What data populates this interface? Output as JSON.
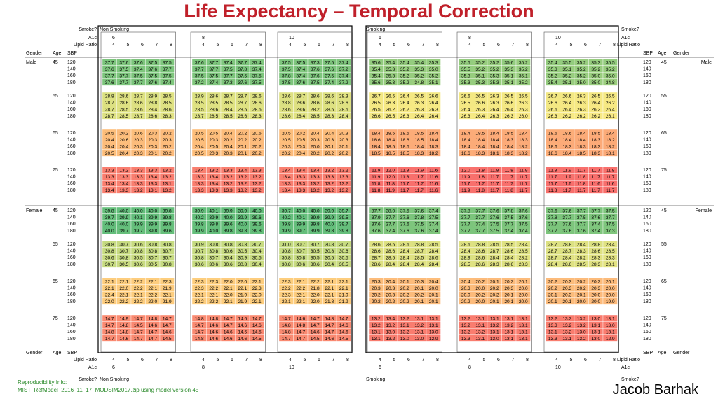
{
  "title": "Life Expectancy – Temporal Correction",
  "header_labels": {
    "smoke": "Smoke?",
    "a1c": "A1c",
    "lipid": "Lipid Ratio",
    "gender": "Gender",
    "age": "Age",
    "sbp": "SBP"
  },
  "smoke_groups": [
    "Non Smoking",
    "Smoking"
  ],
  "a1c_levels": [
    "6",
    "8",
    "10"
  ],
  "lipid_ratios": [
    "4",
    "5",
    "6",
    "7",
    "8"
  ],
  "genders": [
    "Male",
    "Female"
  ],
  "ages": [
    "45",
    "55",
    "65",
    "75"
  ],
  "sbp_levels": [
    "120",
    "140",
    "160",
    "180"
  ],
  "color_scale": {
    "low": "#f8696b",
    "mid": "#ffeb84",
    "high": "#63be7b",
    "min_value": 11,
    "max_value": 40
  },
  "footer": {
    "repro_label": "Reproducibility Info:",
    "repro_file": "MIST_RefModel_2016_11_17_MODSIM2017.zip using model version 45",
    "author": "Jacob Barhak"
  },
  "chart_data": {
    "type": "heatmap",
    "title": "Life Expectancy – Temporal Correction",
    "row_dims": [
      "Gender",
      "Age",
      "SBP"
    ],
    "col_dims": [
      "Smoke?",
      "A1c",
      "Lipid Ratio"
    ],
    "values": {
      "Male": {
        "45": [
          [
            37.7,
            37.6,
            37.6,
            37.5,
            37.5,
            37.6,
            37.7,
            37.4,
            37.7,
            37.4,
            37.5,
            37.5,
            37.3,
            37.5,
            37.4,
            35.6,
            35.4,
            35.4,
            35.4,
            35.3,
            35.5,
            35.2,
            35.2,
            35.6,
            35.2,
            35.4,
            35.5,
            35.2,
            35.3,
            35.5
          ],
          [
            37.6,
            37.5,
            37.4,
            37.6,
            37.7,
            37.7,
            37.7,
            37.5,
            37.8,
            37.4,
            37.5,
            37.4,
            37.6,
            37.6,
            37.2,
            35.4,
            35.3,
            35.2,
            35.3,
            35.0,
            35.5,
            35.2,
            35.2,
            35.3,
            35.2,
            35.3,
            35.1,
            35.2,
            35.2,
            35.2
          ],
          [
            37.7,
            37.7,
            37.5,
            37.5,
            37.5,
            37.5,
            37.5,
            37.7,
            37.5,
            37.5,
            37.8,
            37.4,
            37.6,
            37.5,
            37.4,
            35.4,
            35.3,
            35.2,
            35.2,
            35.2,
            35.3,
            35.1,
            35.3,
            35.1,
            35.1,
            35.2,
            35.2,
            35.2,
            35.0,
            35.0
          ],
          [
            37.6,
            37.7,
            37.7,
            37.6,
            37.4,
            37.2,
            37.4,
            37.3,
            37.6,
            37.5,
            37.5,
            37.6,
            37.5,
            37.4,
            37.2,
            35.6,
            35.3,
            35.2,
            34.8,
            35.1,
            35.3,
            35.3,
            35.3,
            35.1,
            35.2,
            35.4,
            35.1,
            35.0,
            35.0,
            34.8
          ]
        ],
        "55": [
          [
            28.8,
            28.6,
            28.7,
            28.9,
            28.5,
            28.9,
            28.6,
            28.7,
            28.7,
            28.6,
            28.6,
            28.7,
            28.6,
            28.6,
            28.3,
            26.7,
            26.5,
            26.4,
            26.5,
            26.6,
            26.6,
            26.5,
            26.3,
            26.5,
            26.5,
            26.7,
            26.6,
            26.3,
            26.5,
            26.5
          ],
          [
            28.7,
            28.6,
            28.6,
            28.8,
            28.5,
            28.5,
            28.5,
            28.5,
            28.7,
            28.6,
            28.8,
            28.6,
            28.6,
            28.6,
            28.6,
            26.5,
            26.3,
            26.4,
            26.3,
            26.4,
            26.5,
            26.6,
            26.3,
            26.6,
            26.3,
            26.6,
            26.4,
            26.3,
            26.4,
            26.2
          ],
          [
            28.7,
            28.5,
            28.6,
            28.4,
            28.6,
            28.5,
            28.6,
            28.4,
            28.5,
            28.5,
            28.6,
            28.6,
            28.2,
            28.5,
            28.5,
            26.5,
            26.2,
            26.2,
            26.3,
            26.3,
            26.4,
            26.3,
            26.4,
            26.4,
            26.3,
            26.6,
            26.4,
            26.3,
            26.2,
            26.4
          ],
          [
            28.7,
            28.5,
            28.7,
            28.6,
            28.3,
            28.7,
            28.5,
            28.5,
            28.6,
            28.3,
            28.6,
            28.4,
            28.5,
            28.3,
            28.4,
            26.6,
            26.5,
            26.3,
            26.4,
            26.4,
            26.3,
            26.4,
            26.3,
            26.3,
            26.0,
            26.3,
            26.2,
            26.2,
            26.2,
            26.1
          ]
        ],
        "65": [
          [
            20.5,
            20.2,
            20.6,
            20.3,
            20.2,
            20.5,
            20.5,
            20.4,
            20.2,
            20.6,
            20.5,
            20.2,
            20.4,
            20.4,
            20.3,
            18.4,
            18.5,
            18.5,
            18.5,
            18.4,
            18.4,
            18.5,
            18.4,
            18.5,
            18.4,
            18.6,
            18.6,
            18.4,
            18.5,
            18.4
          ],
          [
            20.4,
            20.6,
            20.3,
            20.3,
            20.3,
            20.5,
            20.3,
            20.2,
            20.2,
            20.2,
            20.5,
            20.5,
            20.3,
            20.3,
            20.3,
            18.6,
            18.4,
            18.6,
            18.5,
            18.4,
            18.4,
            18.4,
            18.4,
            18.3,
            18.3,
            18.4,
            18.4,
            18.4,
            18.3,
            18.2
          ],
          [
            20.4,
            20.4,
            20.3,
            20.3,
            20.2,
            20.4,
            20.5,
            20.4,
            20.1,
            20.2,
            20.3,
            20.3,
            20.0,
            20.1,
            20.1,
            18.4,
            18.5,
            18.5,
            18.4,
            18.3,
            18.4,
            18.4,
            18.4,
            18.4,
            18.2,
            18.6,
            18.3,
            18.3,
            18.3,
            18.2
          ],
          [
            20.5,
            20.4,
            20.3,
            20.1,
            20.2,
            20.5,
            20.3,
            20.3,
            20.1,
            20.2,
            20.2,
            20.4,
            20.2,
            20.2,
            20.2,
            18.5,
            18.5,
            18.5,
            18.3,
            18.2,
            18.6,
            18.3,
            18.1,
            18.3,
            18.2,
            18.6,
            18.4,
            18.5,
            18.3,
            18.1
          ]
        ],
        "75": [
          [
            13.3,
            13.2,
            13.3,
            13.3,
            13.2,
            13.4,
            13.2,
            13.3,
            13.4,
            13.3,
            13.4,
            13.4,
            13.4,
            13.2,
            13.2,
            11.9,
            12.0,
            11.8,
            11.9,
            11.6,
            12.0,
            11.8,
            11.8,
            11.8,
            11.9,
            11.8,
            11.9,
            11.7,
            11.7,
            11.8
          ],
          [
            13.3,
            13.3,
            13.3,
            13.4,
            13.2,
            13.3,
            13.4,
            13.2,
            13.2,
            13.2,
            13.4,
            13.3,
            13.3,
            13.3,
            13.3,
            11.9,
            12.0,
            11.8,
            11.7,
            11.6,
            11.9,
            11.8,
            11.7,
            11.7,
            11.7,
            11.7,
            11.9,
            11.8,
            11.7,
            11.7
          ],
          [
            13.4,
            13.4,
            13.3,
            13.3,
            13.1,
            13.3,
            13.4,
            13.2,
            13.2,
            13.2,
            13.3,
            13.3,
            13.2,
            13.2,
            13.2,
            11.8,
            11.8,
            11.7,
            11.7,
            11.6,
            11.7,
            11.7,
            11.7,
            11.7,
            11.7,
            11.7,
            11.6,
            11.8,
            11.6,
            11.6
          ],
          [
            13.4,
            13.3,
            13.2,
            13.1,
            13.2,
            13.3,
            13.3,
            13.3,
            13.2,
            13.2,
            13.4,
            13.3,
            13.2,
            13.2,
            13.2,
            11.8,
            11.9,
            11.7,
            11.7,
            11.6,
            11.9,
            11.8,
            11.7,
            11.8,
            11.7,
            11.8,
            11.7,
            11.7,
            11.7,
            11.7
          ]
        ]
      },
      "Female": {
        "45": [
          [
            39.8,
            40.0,
            40.0,
            40.0,
            39.8,
            39.9,
            40.1,
            39.9,
            39.9,
            40.0,
            39.7,
            40.0,
            40.0,
            39.9,
            39.7,
            37.7,
            38.0,
            37.5,
            37.6,
            37.4,
            37.8,
            37.7,
            37.6,
            37.8,
            37.6,
            37.6,
            37.6,
            37.7,
            37.7,
            37.5
          ],
          [
            39.7,
            39.9,
            40.1,
            39.9,
            39.8,
            40.2,
            39.9,
            40.0,
            39.9,
            39.6,
            40.2,
            40.1,
            39.9,
            39.9,
            39.5,
            37.9,
            37.7,
            37.6,
            37.8,
            37.5,
            37.7,
            37.7,
            37.6,
            37.5,
            37.6,
            37.8,
            37.7,
            37.5,
            37.6,
            37.7
          ],
          [
            40.0,
            40.0,
            39.9,
            39.9,
            39.8,
            39.8,
            39.8,
            39.6,
            40.0,
            39.6,
            39.8,
            39.9,
            39.8,
            40.0,
            39.7,
            37.6,
            37.7,
            37.6,
            37.5,
            37.4,
            37.7,
            37.4,
            37.5,
            37.7,
            37.5,
            37.7,
            37.6,
            37.7,
            37.4,
            37.5
          ],
          [
            40.0,
            39.7,
            39.7,
            39.8,
            39.6,
            39.9,
            40.0,
            39.8,
            39.8,
            39.8,
            39.9,
            39.7,
            39.9,
            39.8,
            39.8,
            37.6,
            37.4,
            37.6,
            37.6,
            37.4,
            37.7,
            37.7,
            37.5,
            37.4,
            37.4,
            37.7,
            37.6,
            37.6,
            37.4,
            37.3
          ]
        ],
        "55": [
          [
            30.8,
            30.7,
            30.6,
            30.8,
            30.8,
            30.9,
            30.8,
            30.8,
            30.8,
            30.7,
            31.0,
            30.7,
            30.7,
            30.8,
            30.7,
            28.6,
            28.5,
            28.6,
            28.8,
            28.5,
            28.6,
            28.8,
            28.5,
            28.5,
            28.4,
            28.7,
            28.8,
            28.4,
            28.8,
            28.4
          ],
          [
            30.8,
            30.7,
            30.8,
            30.8,
            30.7,
            30.7,
            30.8,
            30.6,
            30.5,
            30.4,
            30.8,
            30.7,
            30.5,
            30.8,
            30.6,
            28.6,
            28.6,
            28.4,
            28.7,
            28.4,
            28.4,
            28.6,
            28.7,
            28.6,
            28.5,
            28.7,
            28.7,
            28.3,
            28.6,
            28.5
          ],
          [
            30.6,
            30.8,
            30.5,
            30.7,
            30.7,
            30.8,
            30.7,
            30.4,
            30.9,
            30.5,
            30.8,
            30.8,
            30.5,
            30.5,
            30.5,
            28.7,
            28.5,
            28.4,
            28.5,
            28.6,
            28.9,
            28.6,
            28.4,
            28.4,
            28.2,
            28.7,
            28.4,
            28.2,
            28.3,
            28.3
          ],
          [
            30.7,
            30.5,
            30.6,
            30.5,
            30.8,
            30.6,
            30.6,
            30.6,
            30.8,
            30.4,
            30.8,
            30.6,
            30.6,
            30.4,
            30.5,
            28.6,
            28.4,
            28.4,
            28.4,
            28.4,
            28.5,
            28.6,
            28.3,
            28.6,
            28.3,
            28.4,
            28.6,
            28.5,
            28.3,
            28.1
          ]
        ],
        "65": [
          [
            22.1,
            22.1,
            22.2,
            22.1,
            22.3,
            22.3,
            22.3,
            22.0,
            22.0,
            22.1,
            22.3,
            22.1,
            22.2,
            22.1,
            22.1,
            20.3,
            20.4,
            20.1,
            20.3,
            20.4,
            20.4,
            20.2,
            20.1,
            20.2,
            20.1,
            20.2,
            20.3,
            20.2,
            20.2,
            20.1
          ],
          [
            22.1,
            22.0,
            22.2,
            22.1,
            21.9,
            22.3,
            22.2,
            22.1,
            22.1,
            22.3,
            22.2,
            22.2,
            21.8,
            22.1,
            22.1,
            20.3,
            20.3,
            20.2,
            20.1,
            20.0,
            20.3,
            20.0,
            20.2,
            20.3,
            20.0,
            20.2,
            20.3,
            20.2,
            20.3,
            20.0
          ],
          [
            22.4,
            22.1,
            22.1,
            22.2,
            22.1,
            22.1,
            22.1,
            22.0,
            21.9,
            22.0,
            22.3,
            22.1,
            22.0,
            22.1,
            21.9,
            20.2,
            20.3,
            20.2,
            20.2,
            20.1,
            20.0,
            20.2,
            20.2,
            20.1,
            20.0,
            20.1,
            20.3,
            20.1,
            20.0,
            20.0
          ],
          [
            22.0,
            22.2,
            22.2,
            22.0,
            21.9,
            22.2,
            22.2,
            22.1,
            21.9,
            22.1,
            22.1,
            22.1,
            22.0,
            21.8,
            21.9,
            20.2,
            20.2,
            20.2,
            20.1,
            20.1,
            20.2,
            20.0,
            20.1,
            20.1,
            20.0,
            20.1,
            20.1,
            20.0,
            20.0,
            19.9
          ]
        ],
        "75": [
          [
            14.7,
            14.9,
            14.7,
            14.8,
            14.7,
            14.8,
            14.8,
            14.7,
            14.6,
            14.7,
            14.7,
            14.6,
            14.7,
            14.8,
            14.7,
            13.2,
            13.4,
            13.2,
            13.1,
            13.1,
            13.2,
            13.1,
            13.1,
            13.1,
            13.1,
            13.2,
            13.2,
            13.2,
            13.0,
            13.1
          ],
          [
            14.7,
            14.8,
            14.5,
            14.6,
            14.7,
            14.7,
            14.6,
            14.7,
            14.6,
            14.6,
            14.8,
            14.8,
            14.7,
            14.7,
            14.6,
            13.2,
            13.2,
            13.1,
            13.2,
            13.1,
            13.2,
            13.1,
            13.2,
            13.2,
            13.1,
            13.3,
            13.2,
            13.2,
            13.1,
            13.0
          ],
          [
            14.8,
            14.8,
            14.7,
            14.7,
            14.6,
            14.7,
            14.6,
            14.6,
            14.6,
            14.5,
            14.8,
            14.7,
            14.6,
            14.7,
            14.6,
            13.1,
            13.0,
            13.2,
            13.1,
            13.0,
            13.2,
            13.2,
            13.1,
            13.1,
            13.1,
            13.1,
            13.2,
            13.0,
            13.1,
            13.1
          ],
          [
            14.7,
            14.6,
            14.7,
            14.7,
            14.5,
            14.8,
            14.6,
            14.6,
            14.6,
            14.5,
            14.7,
            14.7,
            14.5,
            14.6,
            14.5,
            13.1,
            13.2,
            13.0,
            13.0,
            12.9,
            13.3,
            13.1,
            13.0,
            13.1,
            13.1,
            13.3,
            13.1,
            13.2,
            13.0,
            12.9
          ]
        ]
      }
    }
  }
}
